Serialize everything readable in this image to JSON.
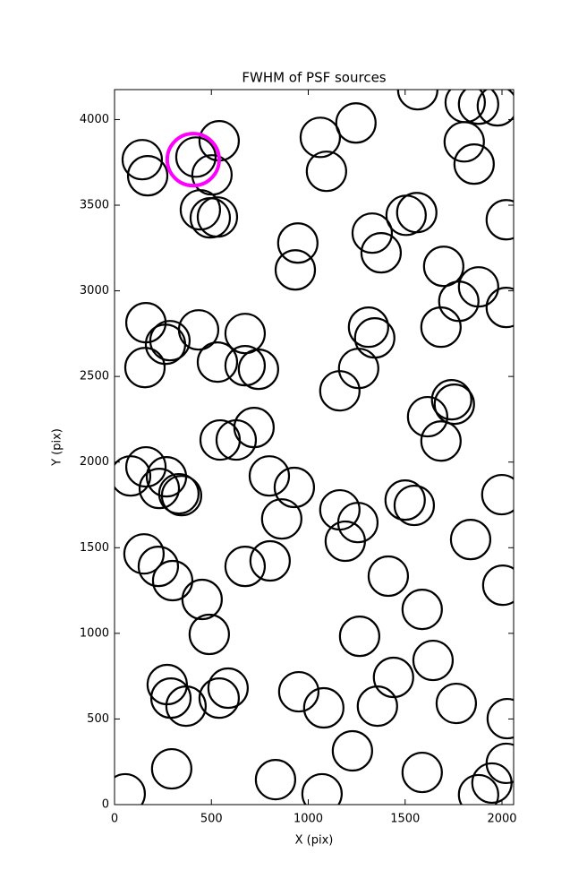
{
  "chart_data": {
    "type": "scatter",
    "title": "FWHM of PSF sources",
    "x_label": "X (pix)",
    "y_label": "Y (pix)",
    "xlim": [
      0,
      2060
    ],
    "ylim": [
      0,
      4175
    ],
    "xticks": [
      0,
      500,
      1000,
      1500,
      2000
    ],
    "yticks": [
      0,
      500,
      1000,
      1500,
      2000,
      2500,
      3000,
      3500,
      4000
    ],
    "series": [
      {
        "color": "#000000",
        "x": [
          55,
          83,
          143,
          171,
          162,
          162,
          157,
          152,
          226,
          231,
          268,
          263,
          286,
          300,
          295,
          272,
          291,
          332,
          346,
          369,
          420,
          443,
          434,
          452,
          489,
          494,
          503,
          531,
          540,
          531,
          545,
          540,
          586,
          628,
          674,
          674,
          720,
          674,
          743,
          799,
          803,
          831,
          863,
          928,
          946,
          933,
          951,
          1062,
          1080,
          1071,
          1094,
          1163,
          1163,
          1191,
          1228,
          1246,
          1256,
          1260,
          1265,
          1311,
          1330,
          1343,
          1357,
          1376,
          1413,
          1440,
          1500,
          1505,
          1560,
          1547,
          1565,
          1588,
          1588,
          1616,
          1644,
          1685,
          1685,
          1699,
          1740,
          1754,
          1764,
          1777,
          1810,
          1805,
          1856,
          1838,
          1879,
          1879,
          1879,
          1948,
          1976,
          1999,
          2004,
          2022,
          2022,
          2027,
          2022
        ],
        "values": [
          63,
          1919,
          3766,
          3672,
          1972,
          2814,
          2552,
          1464,
          1391,
          1846,
          1914,
          2688,
          2709,
          1308,
          209,
          701,
          622,
          1815,
          1804,
          575,
          3781,
          3473,
          2772,
          1198,
          994,
          3426,
          3677,
          3431,
          3876,
          2584,
          2129,
          622,
          680,
          2129,
          2563,
          2751,
          2202,
          1391,
          2542,
          1919,
          1423,
          146,
          1668,
          1852,
          3279,
          3122,
          659,
          3896,
          565,
          63,
          3698,
          2416,
          1721,
          1538,
          314,
          3980,
          1647,
          2547,
          983,
          2788,
          3337,
          2725,
          575,
          3222,
          1334,
          743,
          1778,
          3441,
          3457,
          1747,
          4174,
          1140,
          188,
          2265,
          842,
          2788,
          2123,
          3143,
          2364,
          2338,
          591,
          2939,
          4100,
          3870,
          3740,
          1548,
          3023,
          58,
          4090,
          126,
          4080,
          1810,
          1281,
          3415,
          2903,
          502,
          241
        ]
      },
      {
        "color": "#ff00ff",
        "x": [
          406
        ],
        "values": [
          3766
        ]
      }
    ]
  }
}
